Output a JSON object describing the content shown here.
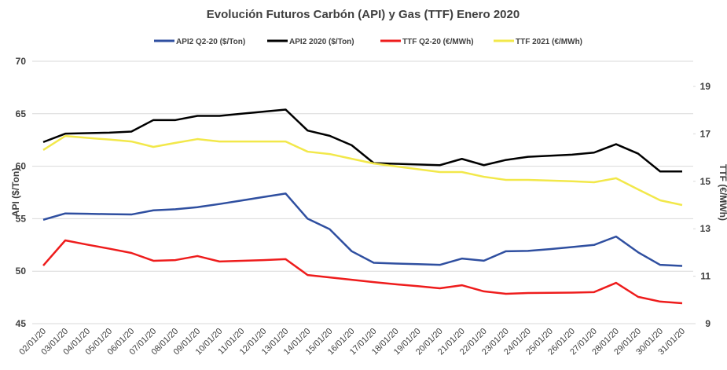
{
  "chart_data": {
    "type": "line",
    "title": "Evolución Futuros Carbón (API) y Gas (TTF) Enero 2020",
    "y_label": "API ($/Ton)",
    "y2_label": "TTF (€/MWh)",
    "categories": [
      "02/01/20",
      "03/01/20",
      "04/01/20",
      "05/01/20",
      "06/01/20",
      "07/01/20",
      "08/01/20",
      "09/01/20",
      "10/01/20",
      "11/01/20",
      "12/01/20",
      "13/01/20",
      "14/01/20",
      "15/01/20",
      "16/01/20",
      "17/01/20",
      "18/01/20",
      "19/01/20",
      "20/01/20",
      "21/01/20",
      "22/01/20",
      "23/01/20",
      "24/01/20",
      "25/01/20",
      "26/01/20",
      "27/01/20",
      "28/01/20",
      "29/01/20",
      "30/01/20",
      "31/01/20"
    ],
    "series": [
      {
        "name": "API2 Q2-20 ($/Ton)",
        "color": "#2f4fa0",
        "axis": "y",
        "values": [
          54.9,
          55.5,
          55.47,
          55.43,
          55.4,
          55.8,
          55.9,
          56.1,
          56.4,
          56.73,
          57.07,
          57.4,
          55.0,
          54.0,
          51.9,
          50.8,
          50.73,
          50.67,
          50.6,
          51.2,
          51.0,
          51.9,
          51.93,
          52.1,
          52.3,
          52.5,
          53.3,
          51.8,
          50.6,
          50.5
        ]
      },
      {
        "name": "API2 2020 ($/Ton)",
        "color": "#000000",
        "axis": "y",
        "values": [
          62.3,
          63.1,
          63.15,
          63.2,
          63.3,
          64.4,
          64.4,
          64.8,
          64.8,
          65.0,
          65.2,
          65.4,
          63.4,
          62.9,
          62.0,
          60.3,
          60.23,
          60.17,
          60.1,
          60.7,
          60.1,
          60.6,
          60.9,
          61.0,
          61.1,
          61.3,
          62.1,
          61.2,
          59.5,
          59.5
        ]
      },
      {
        "name": "TTF Q2-20 (€/MWh)",
        "color": "#ee1c1c",
        "axis": "y2",
        "values": [
          11.45,
          12.51,
          12.33,
          12.16,
          11.98,
          11.65,
          11.68,
          11.85,
          11.62,
          11.65,
          11.68,
          11.72,
          11.05,
          10.95,
          10.85,
          10.75,
          10.66,
          10.58,
          10.49,
          10.62,
          10.36,
          10.26,
          10.29,
          10.3,
          10.31,
          10.33,
          10.72,
          10.13,
          9.93,
          9.86
        ]
      },
      {
        "name": "TTF 2021 (€/MWh)",
        "color": "#f2e84a",
        "axis": "y2",
        "values": [
          16.32,
          16.91,
          16.83,
          16.76,
          16.68,
          16.45,
          16.62,
          16.78,
          16.68,
          16.68,
          16.68,
          16.68,
          16.25,
          16.15,
          15.95,
          15.75,
          15.63,
          15.51,
          15.39,
          15.39,
          15.19,
          15.06,
          15.06,
          15.03,
          15.0,
          14.96,
          15.13,
          14.66,
          14.2,
          14.0
        ]
      }
    ],
    "ylim": [
      45,
      70
    ],
    "yticks": [
      45,
      50,
      55,
      60,
      65,
      70
    ],
    "y2lim": [
      9,
      20.06
    ],
    "y2ticks": [
      9,
      11,
      13,
      15,
      17,
      19
    ],
    "grid": true
  }
}
